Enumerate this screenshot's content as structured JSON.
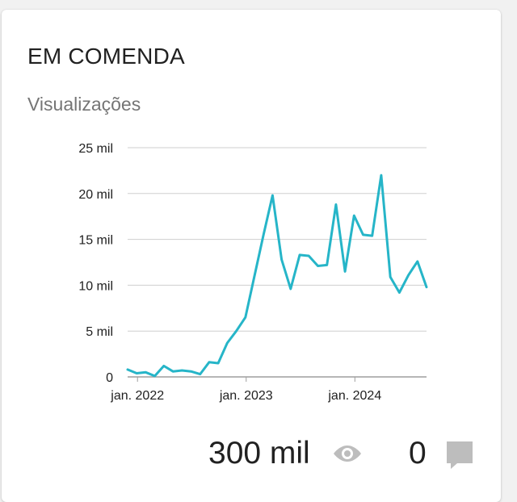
{
  "card": {
    "title": "EM COMENDA",
    "subtitle": "Visualizações"
  },
  "chart_data": {
    "type": "line",
    "title": "",
    "xlabel": "",
    "ylabel": "",
    "x_tick_labels": [
      "jan. 2022",
      "jan. 2023",
      "jan. 2024"
    ],
    "y_tick_labels": [
      "0",
      "5 mil",
      "10 mil",
      "15 mil",
      "20 mil",
      "25 mil"
    ],
    "ylim": [
      0,
      25000
    ],
    "grid": true,
    "color": "#26b5c8",
    "series": [
      {
        "values": [
          800,
          400,
          500,
          100,
          1200,
          600,
          700,
          600,
          300,
          1600,
          1500,
          3700,
          5000,
          6500,
          11000,
          15500,
          19800,
          12800,
          9600,
          13300,
          13200,
          12100,
          12200,
          18800,
          11500,
          17600,
          15500,
          15400,
          22000,
          10900,
          9200,
          11100,
          12600,
          9800
        ]
      }
    ]
  },
  "stats": {
    "views": "300 mil",
    "views_icon": "eye-icon",
    "comments": "0",
    "comments_icon": "comment-icon",
    "icon_color": "#bdbdbd"
  }
}
